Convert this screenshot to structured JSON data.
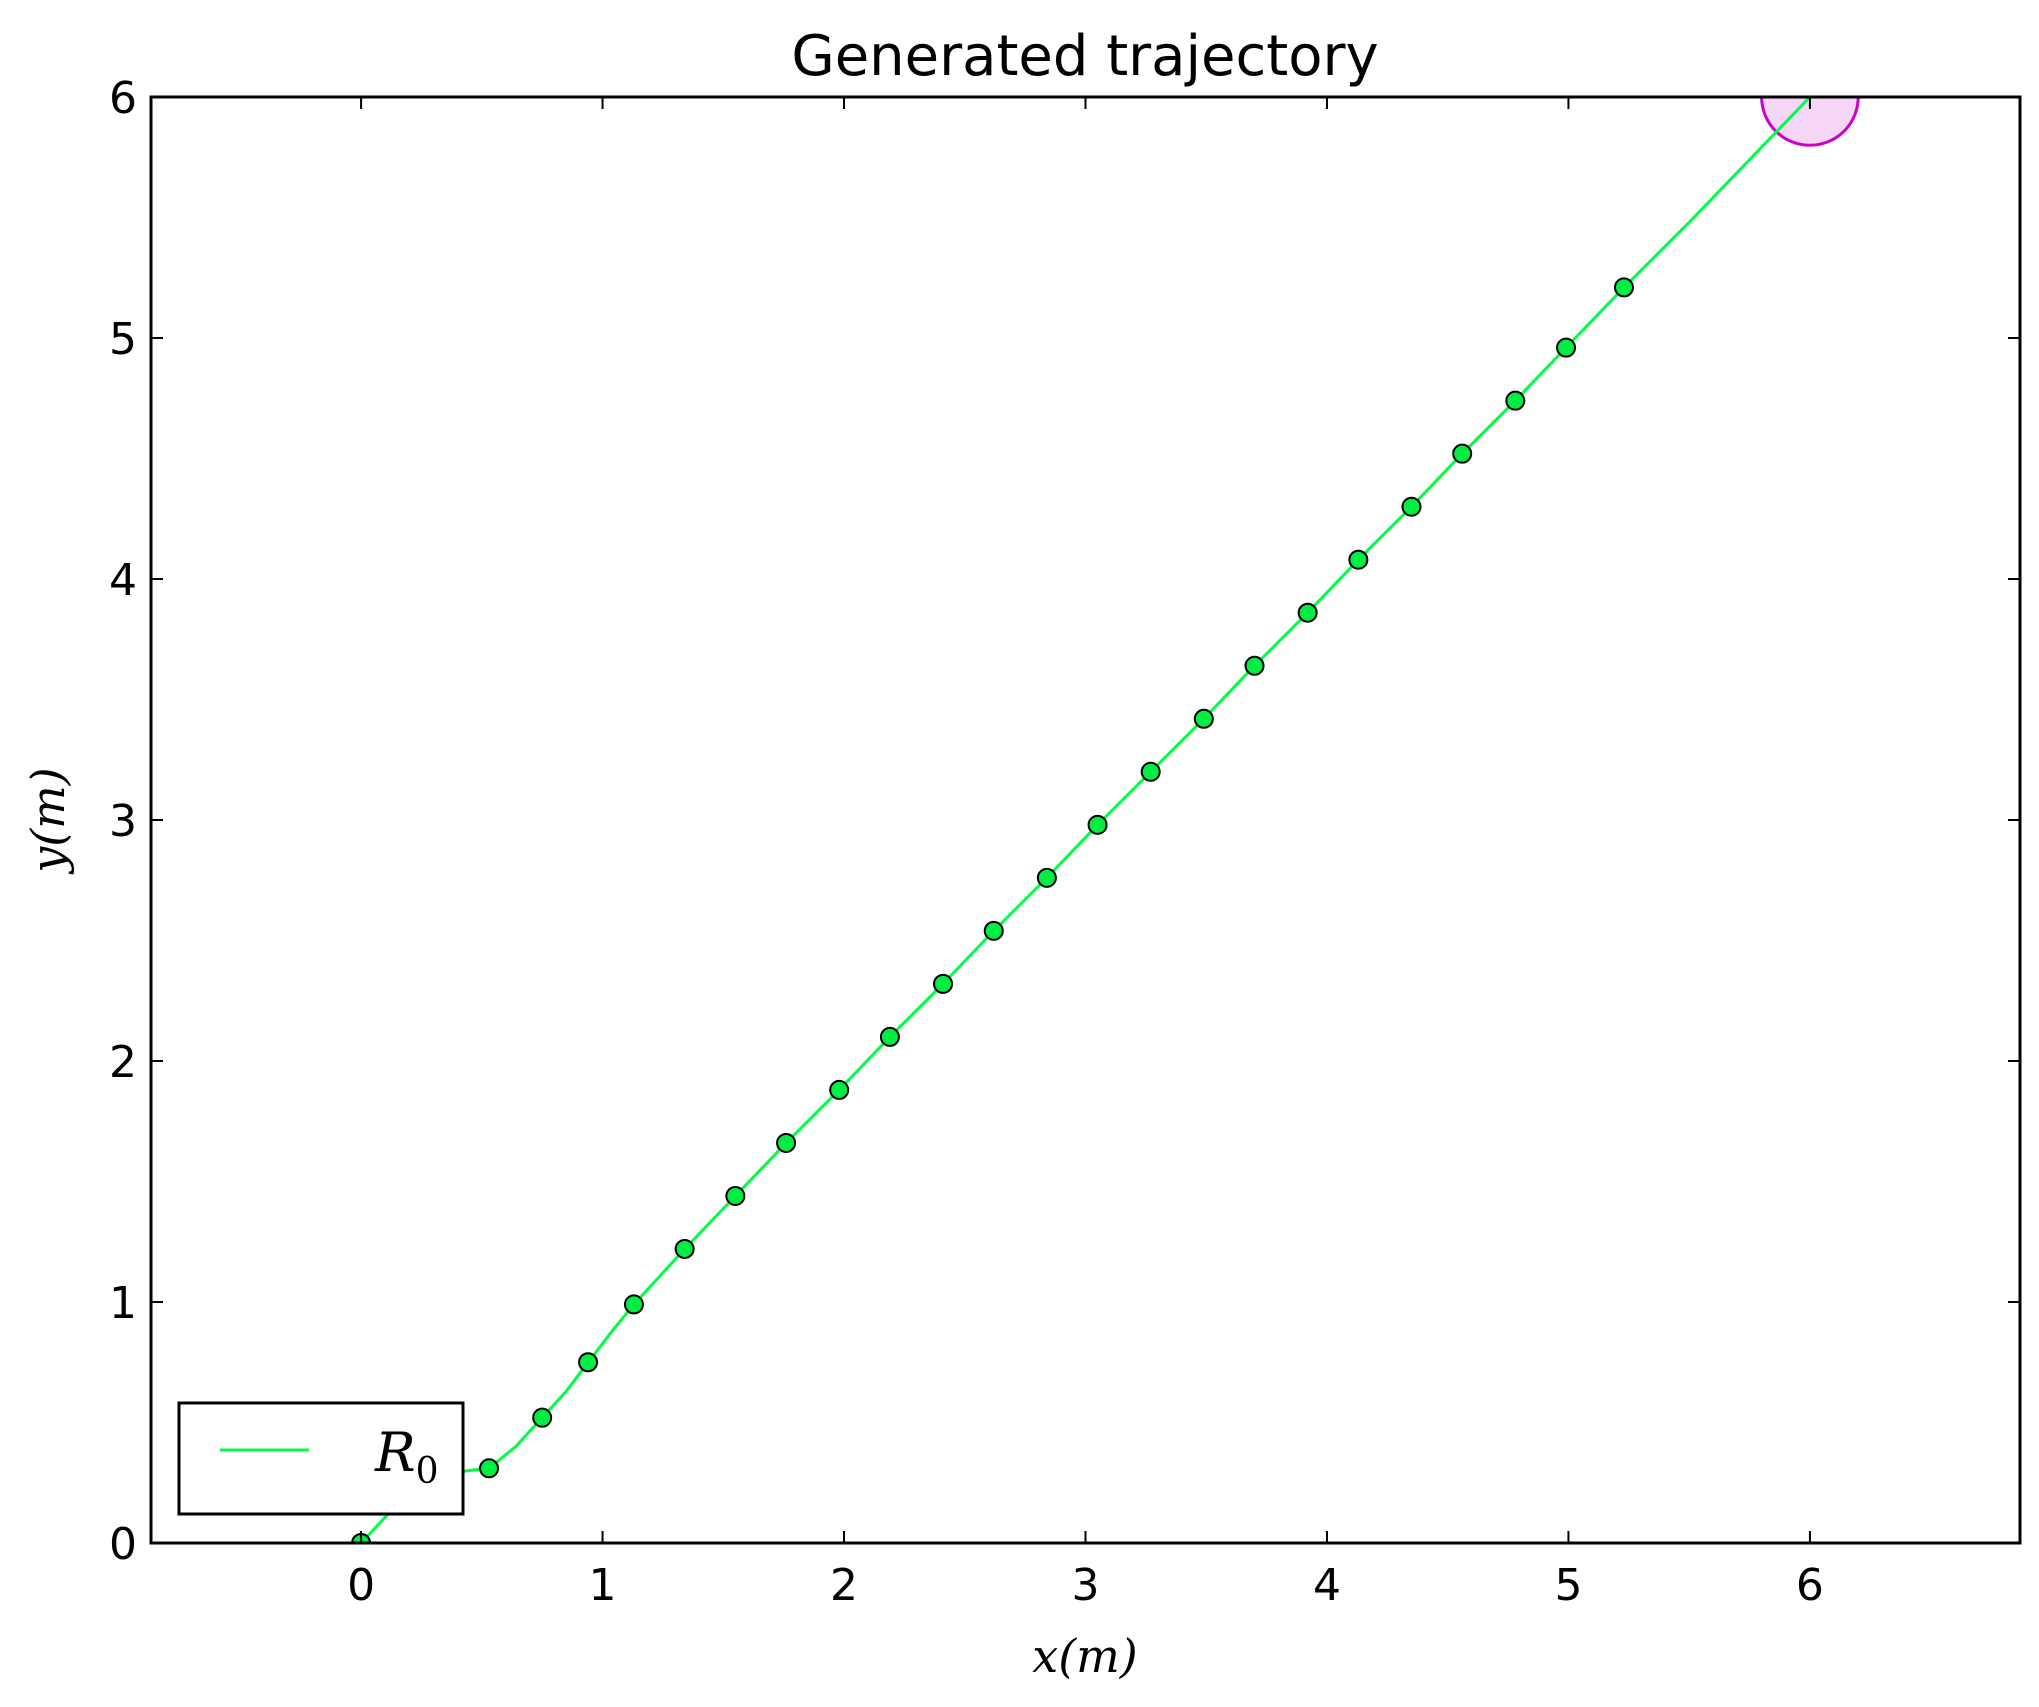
{
  "chart_data": {
    "type": "line",
    "title": "Generated trajectory",
    "xlabel": "x(m)",
    "ylabel": "y(m)",
    "xlim": [
      -0.87,
      6.87
    ],
    "ylim": [
      0,
      6
    ],
    "xticks": [
      0,
      1,
      2,
      3,
      4,
      5,
      6
    ],
    "yticks": [
      0,
      1,
      2,
      3,
      4,
      5,
      6
    ],
    "grid": false,
    "legend": {
      "placement": "lower-left",
      "entries": [
        {
          "label": "R",
          "subscript": "0",
          "color": "#00ff44"
        }
      ]
    },
    "series": [
      {
        "name": "R0",
        "color": "#00ff44",
        "marker_fill": "#00ee44",
        "line": [
          [
            0,
            0
          ],
          [
            0.14,
            0.15
          ],
          [
            0.28,
            0.27
          ],
          [
            0.44,
            0.3
          ],
          [
            0.53,
            0.31
          ],
          [
            0.64,
            0.4
          ],
          [
            0.75,
            0.52
          ],
          [
            0.85,
            0.63
          ],
          [
            0.94,
            0.75
          ],
          [
            1.04,
            0.88
          ],
          [
            1.13,
            0.99
          ],
          [
            1.34,
            1.22
          ],
          [
            1.55,
            1.44
          ],
          [
            1.76,
            1.66
          ],
          [
            1.98,
            1.88
          ],
          [
            2.19,
            2.1
          ],
          [
            2.41,
            2.32
          ],
          [
            2.62,
            2.54
          ],
          [
            2.84,
            2.76
          ],
          [
            3.05,
            2.98
          ],
          [
            3.27,
            3.2
          ],
          [
            3.49,
            3.42
          ],
          [
            3.7,
            3.64
          ],
          [
            3.92,
            3.86
          ],
          [
            4.13,
            4.08
          ],
          [
            4.35,
            4.3
          ],
          [
            4.56,
            4.52
          ],
          [
            4.78,
            4.74
          ],
          [
            4.99,
            4.96
          ],
          [
            5.23,
            5.21
          ],
          [
            5.5,
            5.48
          ],
          [
            5.75,
            5.74
          ],
          [
            6.0,
            6.0
          ]
        ],
        "markers": [
          [
            0,
            0
          ],
          [
            0.53,
            0.31
          ],
          [
            0.75,
            0.52
          ],
          [
            0.94,
            0.75
          ],
          [
            1.13,
            0.99
          ],
          [
            1.34,
            1.22
          ],
          [
            1.55,
            1.44
          ],
          [
            1.76,
            1.66
          ],
          [
            1.98,
            1.88
          ],
          [
            2.19,
            2.1
          ],
          [
            2.41,
            2.32
          ],
          [
            2.62,
            2.54
          ],
          [
            2.84,
            2.76
          ],
          [
            3.05,
            2.98
          ],
          [
            3.27,
            3.2
          ],
          [
            3.49,
            3.42
          ],
          [
            3.7,
            3.64
          ],
          [
            3.92,
            3.86
          ],
          [
            4.13,
            4.08
          ],
          [
            4.35,
            4.3
          ],
          [
            4.56,
            4.52
          ],
          [
            4.78,
            4.74
          ],
          [
            4.99,
            4.96
          ],
          [
            5.23,
            5.21
          ]
        ]
      }
    ],
    "goal": {
      "x": 6.0,
      "y": 6.0,
      "radius": 0.2,
      "edge_color": "#cc00cc",
      "fill_color": "#f4ccf4"
    }
  }
}
